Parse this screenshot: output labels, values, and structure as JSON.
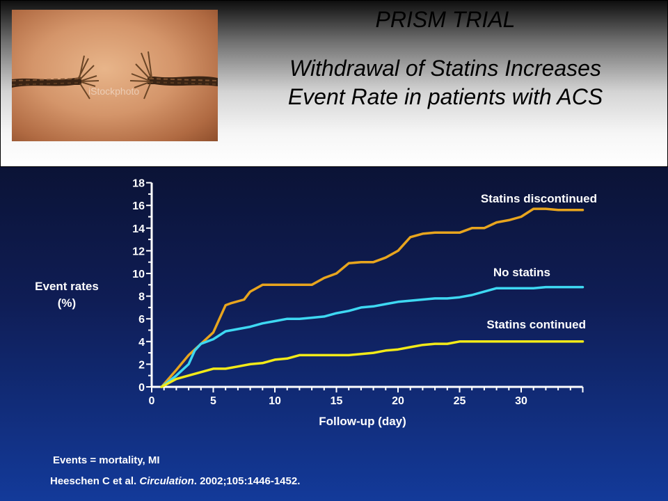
{
  "header": {
    "title_line1": "PRISM TRIAL",
    "title_line2a": "Withdrawal of Statins Increases",
    "title_line2b": "Event Rate in patients with ACS",
    "photo": {
      "description_icon": "frayed-rope-image",
      "watermark": "iStockphoto"
    }
  },
  "colors": {
    "discontinued": "#e8a51e",
    "no_statins": "#3ed8f2",
    "continued": "#f2ea18",
    "axis": "#ffffff"
  },
  "chart_data": {
    "type": "line",
    "ylabel_line1": "Event rates",
    "ylabel_line2": "(%)",
    "xlabel": "Follow-up (day)",
    "xlim": [
      0,
      35
    ],
    "ylim": [
      0,
      18
    ],
    "x_ticks": [
      "0",
      "5",
      "10",
      "15",
      "20",
      "25",
      "30"
    ],
    "y_ticks": [
      "0",
      "2",
      "4",
      "6",
      "8",
      "10",
      "12",
      "14",
      "16",
      "18"
    ],
    "grid": false,
    "series": [
      {
        "name": "Statins discontinued",
        "color_key": "discontinued",
        "x": [
          0.8,
          2,
          3,
          4,
          5,
          6,
          6.5,
          7.5,
          8,
          9,
          10,
          11,
          12,
          13,
          14,
          15,
          16,
          17,
          18,
          19,
          20,
          21,
          22,
          23,
          24,
          25,
          26,
          27,
          28,
          29,
          30,
          31,
          32,
          33,
          34,
          35
        ],
        "y": [
          0,
          1.5,
          2.8,
          3.8,
          4.8,
          7.2,
          7.4,
          7.7,
          8.4,
          9.0,
          9.0,
          9.0,
          9.0,
          9.0,
          9.6,
          10.0,
          10.9,
          11.0,
          11.0,
          11.4,
          12.0,
          13.2,
          13.5,
          13.6,
          13.6,
          13.6,
          14.0,
          14.0,
          14.5,
          14.7,
          15.0,
          15.7,
          15.7,
          15.6,
          15.6,
          15.6
        ]
      },
      {
        "name": "No statins",
        "color_key": "no_statins",
        "x": [
          0.8,
          2,
          3,
          3.5,
          4,
          5,
          6,
          7,
          8,
          9,
          10,
          11,
          12,
          13,
          14,
          15,
          16,
          17,
          18,
          19,
          20,
          21,
          22,
          23,
          24,
          25,
          26,
          27,
          28,
          29,
          30,
          31,
          32,
          33,
          34,
          35
        ],
        "y": [
          0,
          1.0,
          2.0,
          3.2,
          3.8,
          4.2,
          4.9,
          5.1,
          5.3,
          5.6,
          5.8,
          6.0,
          6.0,
          6.1,
          6.2,
          6.5,
          6.7,
          7.0,
          7.1,
          7.3,
          7.5,
          7.6,
          7.7,
          7.8,
          7.8,
          7.9,
          8.1,
          8.4,
          8.7,
          8.7,
          8.7,
          8.7,
          8.8,
          8.8,
          8.8,
          8.8
        ]
      },
      {
        "name": "Statins continued",
        "color_key": "continued",
        "x": [
          0.8,
          2,
          3,
          4,
          5,
          6,
          7,
          8,
          9,
          10,
          11,
          12,
          13,
          14,
          15,
          16,
          17,
          18,
          19,
          20,
          21,
          22,
          23,
          24,
          25,
          26,
          27,
          28,
          29,
          30,
          31,
          32,
          33,
          34,
          35
        ],
        "y": [
          0,
          0.7,
          1.0,
          1.3,
          1.6,
          1.6,
          1.8,
          2.0,
          2.1,
          2.4,
          2.5,
          2.8,
          2.8,
          2.8,
          2.8,
          2.8,
          2.9,
          3.0,
          3.2,
          3.3,
          3.5,
          3.7,
          3.8,
          3.8,
          4.0,
          4.0,
          4.0,
          4.0,
          4.0,
          4.0,
          4.0,
          4.0,
          4.0,
          4.0,
          4.0
        ]
      }
    ]
  },
  "footer": {
    "events_note": "Events = mortality, MI",
    "citation_authors": "Heeschen C et al. ",
    "citation_journal": "Circulation",
    "citation_rest": ". 2002;105:1446-1452."
  }
}
